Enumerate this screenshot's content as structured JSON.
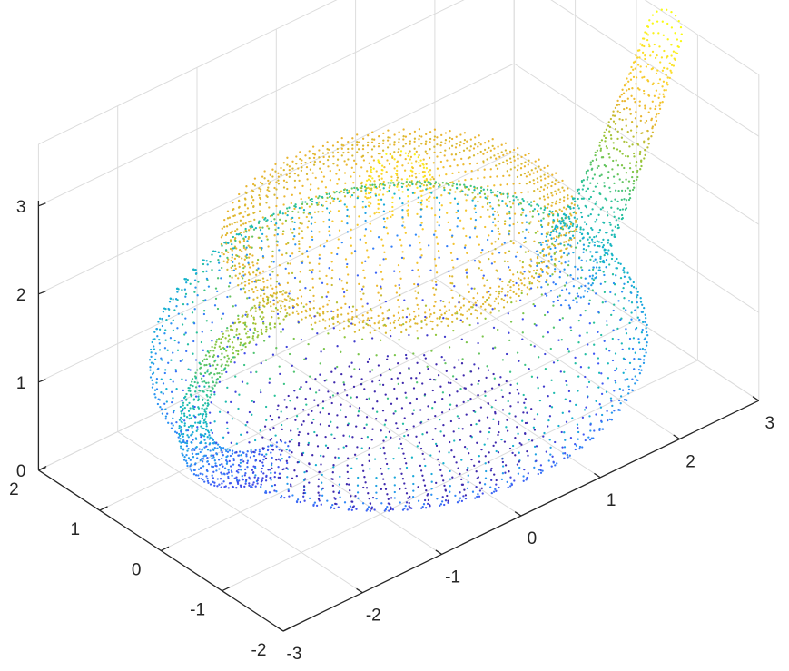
{
  "chart_data": {
    "type": "scatter3",
    "title": "",
    "xlabel": "",
    "ylabel": "",
    "zlabel": "",
    "grid": true,
    "colormap": "parula",
    "colormap_stops": [
      "#3e26a8",
      "#4254f4",
      "#2d8ef8",
      "#13b2cf",
      "#29c297",
      "#8fc63a",
      "#eab530",
      "#fcd42e",
      "#f9fb14"
    ],
    "axis_color": "#262626",
    "grid_color": "#dcdcdc",
    "subject": "point cloud of a teapot colored by height",
    "xlim": [
      -3,
      3
    ],
    "ylim": [
      -2,
      2
    ],
    "zlim": [
      0,
      3
    ],
    "x_ticks": [
      "-3",
      "-2",
      "-1",
      "0",
      "1",
      "2",
      "3"
    ],
    "y_ticks": [
      "-2",
      "-1",
      "0",
      "1",
      "2"
    ],
    "z_ticks": [
      "0",
      "1",
      "2",
      "3"
    ],
    "z_range_of_points": [
      0,
      3.15
    ]
  }
}
